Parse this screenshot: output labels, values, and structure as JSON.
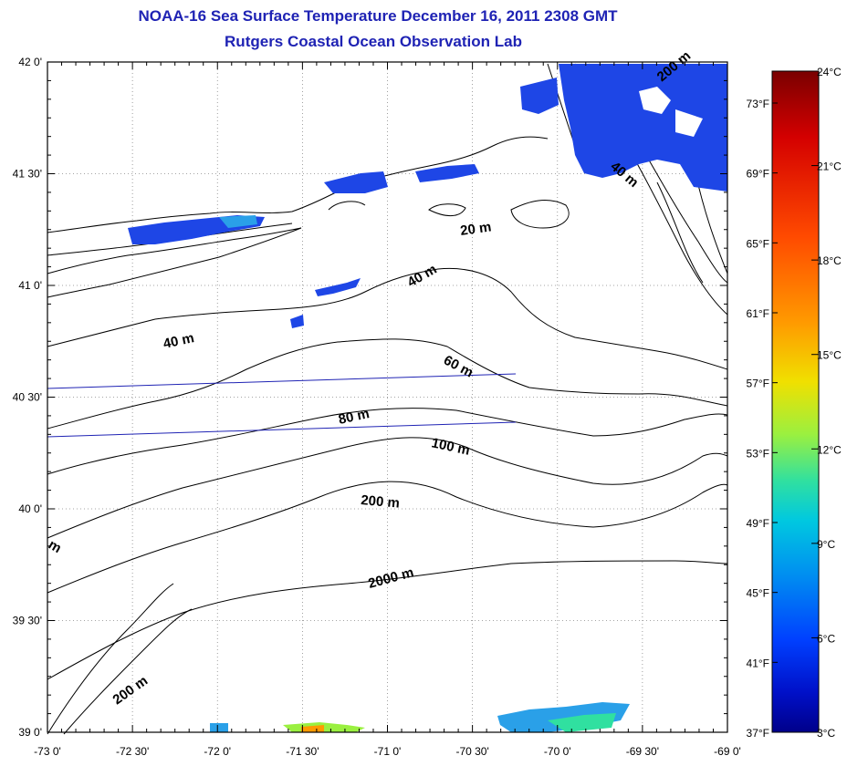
{
  "title": "NOAA-16 Sea Surface Temperature December 16, 2011 2308 GMT",
  "subtitle": "Rutgers Coastal Ocean Observation Lab",
  "lon_labels": [
    "-73 0'",
    "-72 30'",
    "-72 0'",
    "-71 30'",
    "-71 0'",
    "-70 30'",
    "-70 0'",
    "-69 30'",
    "-69 0'"
  ],
  "lat_labels": [
    "42 0'",
    "41 30'",
    "41 0'",
    "40 30'",
    "40 0'",
    "39 30'",
    "39 0'"
  ],
  "colorbar": {
    "celsius": [
      "24°C",
      "21°C",
      "18°C",
      "15°C",
      "12°C",
      "9°C",
      "6°C",
      "3°C"
    ],
    "fahrenheit": [
      "73°F",
      "69°F",
      "65°F",
      "61°F",
      "57°F",
      "53°F",
      "49°F",
      "45°F",
      "41°F",
      "37°F"
    ],
    "colors": [
      "#7a0000",
      "#d40000",
      "#ff4a00",
      "#ff9a00",
      "#f0e000",
      "#9af040",
      "#30e0a0",
      "#00c8e0",
      "#0090f0",
      "#0040ff",
      "#0010c8",
      "#00008a"
    ]
  },
  "contour_labels": [
    "20 m",
    "40 m",
    "40 m",
    "60 m",
    "80 m",
    "100 m",
    "200 m",
    "2000 m",
    "200 m",
    "200 m",
    "40 m",
    "m"
  ],
  "colors": {
    "title": "#1f23b4",
    "sst_blue": "#1e46e6",
    "sst_light": "#2aa0e8"
  }
}
